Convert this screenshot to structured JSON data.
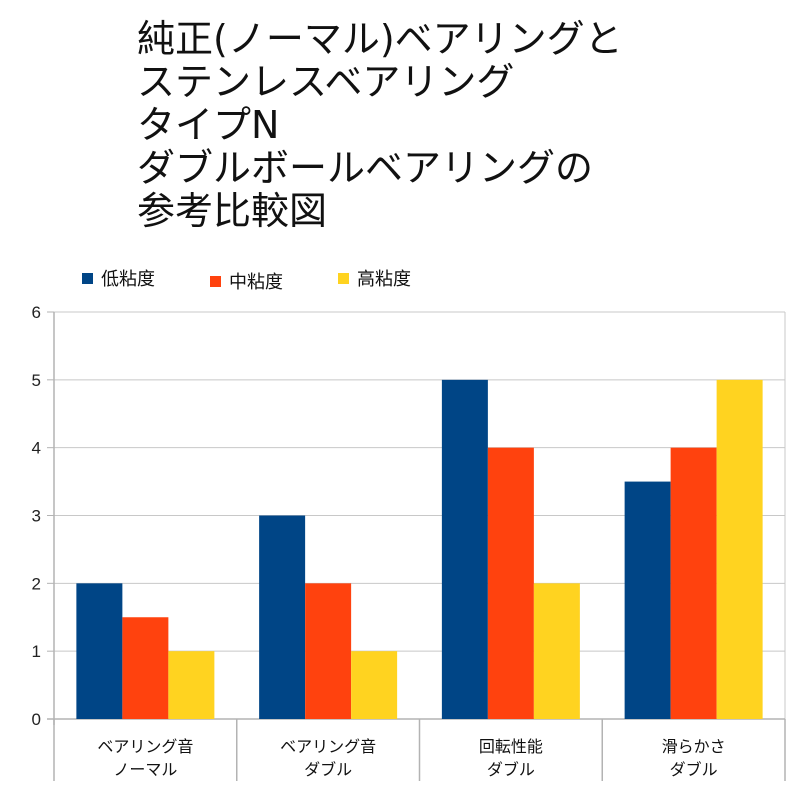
{
  "chart_data": {
    "type": "bar",
    "title_lines": [
      "純正(ノーマル)ベアリングと",
      "ステンレスベアリング",
      "タイプN",
      "ダブルボールベアリングの",
      "参考比較図"
    ],
    "categories": [
      [
        "ベアリング音",
        "ノーマル"
      ],
      [
        "ベアリング音",
        "ダブル"
      ],
      [
        "回転性能",
        "ダブル"
      ],
      [
        "滑らかさ",
        "ダブル"
      ]
    ],
    "series": [
      {
        "name": "低粘度",
        "color": "#004586",
        "values": [
          2,
          3,
          5,
          3.5
        ]
      },
      {
        "name": "中粘度",
        "color": "#ff420e",
        "values": [
          1.5,
          2,
          4,
          4
        ]
      },
      {
        "name": "高粘度",
        "color": "#ffd320",
        "values": [
          1,
          1,
          2,
          5
        ]
      }
    ],
    "ylim": [
      0,
      6
    ],
    "yticks": [
      "0",
      "1",
      "2",
      "3",
      "4",
      "5",
      "6"
    ],
    "xlabel": "",
    "ylabel": "",
    "grid": true,
    "legend_position": "top-left"
  }
}
